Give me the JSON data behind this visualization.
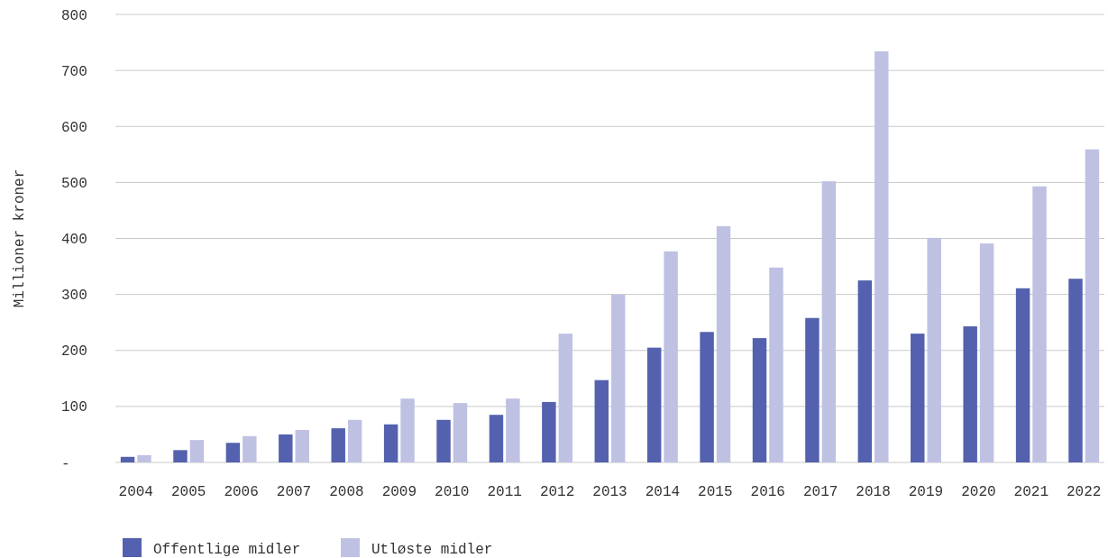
{
  "chart_data": {
    "type": "bar",
    "ylabel": "Millioner kroner",
    "categories": [
      "2004",
      "2005",
      "2006",
      "2007",
      "2008",
      "2009",
      "2010",
      "2011",
      "2012",
      "2013",
      "2014",
      "2015",
      "2016",
      "2017",
      "2018",
      "2019",
      "2020",
      "2021",
      "2022"
    ],
    "series": [
      {
        "name": "Offentlige midler",
        "color": "#5361ae",
        "values": [
          10,
          22,
          35,
          50,
          61,
          68,
          76,
          85,
          108,
          147,
          205,
          233,
          222,
          258,
          325,
          230,
          243,
          311,
          328
        ]
      },
      {
        "name": "Utløste midler",
        "color": "#bfc1e3",
        "values": [
          13,
          40,
          47,
          58,
          76,
          114,
          106,
          114,
          230,
          300,
          377,
          422,
          348,
          502,
          734,
          401,
          391,
          493,
          559
        ]
      }
    ],
    "ylim": [
      0,
      800
    ],
    "yticks": [
      {
        "value": 0,
        "label": "-"
      },
      100,
      200,
      300,
      400,
      500,
      600,
      700,
      800
    ],
    "grid": "y",
    "legend": "bottom left"
  }
}
